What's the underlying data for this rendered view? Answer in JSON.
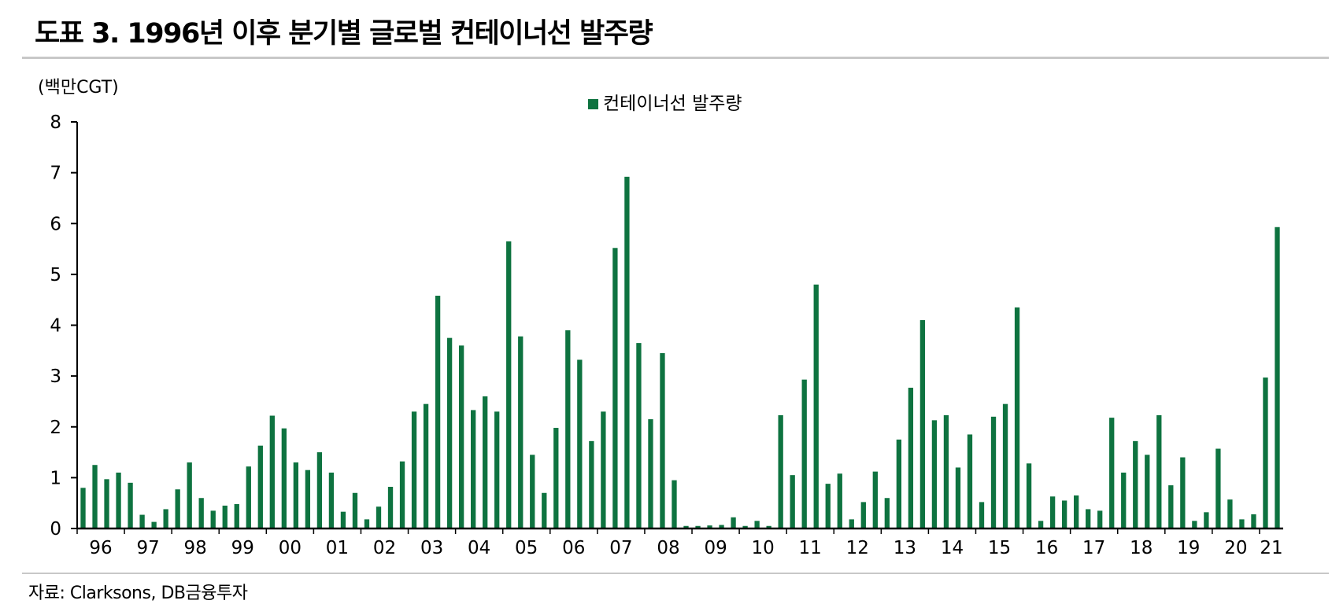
{
  "title": "도표 3. 1996년 이후 분기별 글로벌 컨테이너선 발주량",
  "source": "자료: Clarksons, DB금융투자",
  "colors": {
    "bar": "#0e7340",
    "axis": "#000000",
    "rule": "#c8c8c8"
  },
  "chart_data": {
    "type": "bar",
    "unit_label": "(백만CGT)",
    "legend": {
      "label": "컨테이너선 발주량",
      "placement": "top-center"
    },
    "ylim": [
      0,
      8
    ],
    "yticks": [
      "0",
      "1",
      "2",
      "3",
      "4",
      "5",
      "6",
      "7",
      "8"
    ],
    "year_labels": [
      "96",
      "97",
      "98",
      "99",
      "00",
      "01",
      "02",
      "03",
      "04",
      "05",
      "06",
      "07",
      "08",
      "09",
      "10",
      "11",
      "12",
      "13",
      "14",
      "15",
      "16",
      "17",
      "18",
      "19",
      "20",
      "21"
    ],
    "series": [
      {
        "name": "컨테이너선 발주량",
        "values": [
          0.8,
          1.25,
          0.97,
          1.1,
          0.9,
          0.27,
          0.13,
          0.38,
          0.77,
          1.3,
          0.6,
          0.35,
          0.45,
          0.48,
          1.22,
          1.63,
          2.22,
          1.97,
          1.3,
          1.15,
          1.5,
          1.1,
          0.33,
          0.7,
          0.18,
          0.43,
          0.82,
          1.32,
          2.3,
          2.45,
          4.58,
          3.75,
          3.6,
          2.33,
          2.6,
          2.3,
          5.65,
          3.78,
          1.45,
          0.7,
          1.98,
          3.9,
          3.32,
          1.72,
          2.3,
          5.52,
          6.92,
          3.65,
          2.15,
          3.45,
          0.95,
          0.05,
          0.05,
          0.06,
          0.07,
          0.22,
          0.05,
          0.15,
          0.05,
          2.23,
          1.05,
          2.93,
          4.8,
          0.88,
          1.08,
          0.18,
          0.52,
          1.12,
          0.6,
          1.75,
          2.77,
          4.1,
          2.13,
          2.23,
          1.2,
          1.85,
          0.52,
          2.2,
          2.45,
          4.35,
          1.28,
          0.15,
          0.63,
          0.55,
          0.65,
          0.38,
          0.35,
          2.18,
          1.1,
          1.72,
          1.45,
          2.23,
          0.85,
          1.4,
          0.15,
          0.32,
          1.57,
          0.57,
          0.18,
          0.28,
          2.97,
          5.93
        ]
      }
    ]
  }
}
